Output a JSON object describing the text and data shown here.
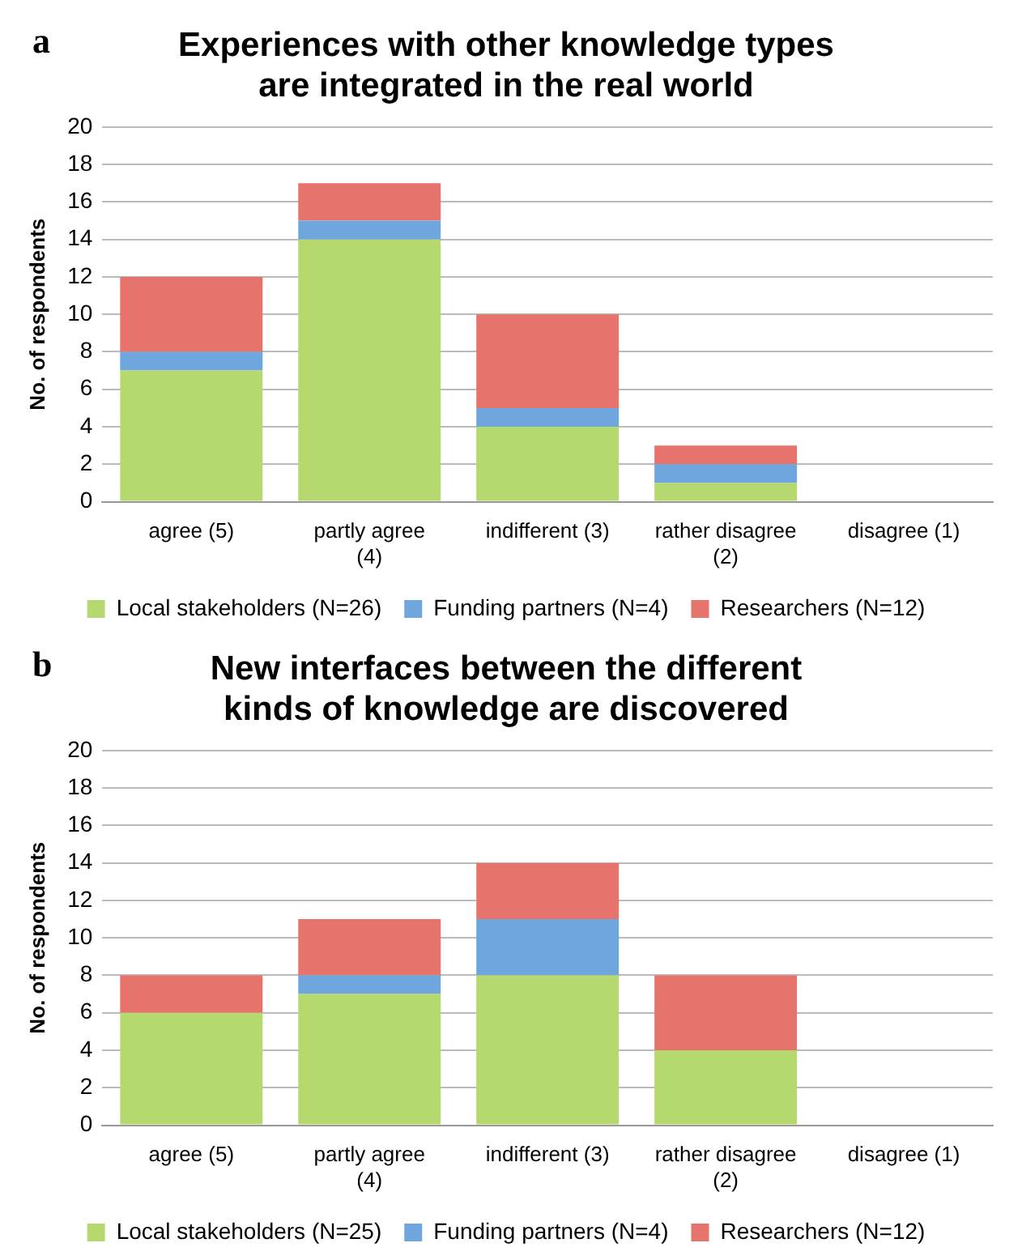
{
  "chart_data": [
    {
      "type": "bar",
      "title": "Experiences with other knowledge types are integrated in the real world",
      "ylabel": "No. of respondents",
      "annotations": [
        "a"
      ],
      "categories": [
        "agree (5)",
        "partly agree (4)",
        "indifferent (3)",
        "rather disagree (2)",
        "disagree (1)"
      ],
      "stacked": true,
      "series": [
        {
          "name": "Local stakeholders (N=26)",
          "color": "#b5d96e",
          "values": [
            7,
            14,
            4,
            1,
            0
          ]
        },
        {
          "name": "Funding partners (N=4)",
          "color": "#6fa6de",
          "values": [
            1,
            1,
            1,
            1,
            0
          ]
        },
        {
          "name": "Researchers (N=12)",
          "color": "#e6736c",
          "values": [
            4,
            2,
            5,
            1,
            0
          ]
        }
      ],
      "ylim": [
        0,
        20
      ],
      "yticks": [
        0,
        2,
        4,
        6,
        8,
        10,
        12,
        14,
        16,
        18,
        20
      ],
      "grid": "y",
      "legend": "bottom"
    },
    {
      "type": "bar",
      "title": "New interfaces between the different kinds of knowledge are discovered",
      "ylabel": "No. of respondents",
      "annotations": [
        "b"
      ],
      "categories": [
        "agree (5)",
        "partly agree (4)",
        "indifferent (3)",
        "rather disagree (2)",
        "disagree (1)"
      ],
      "stacked": true,
      "series": [
        {
          "name": "Local stakeholders (N=25)",
          "color": "#b5d96e",
          "values": [
            6,
            7,
            8,
            4,
            0
          ]
        },
        {
          "name": "Funding partners (N=4)",
          "color": "#6fa6de",
          "values": [
            0,
            1,
            3,
            0,
            0
          ]
        },
        {
          "name": "Researchers (N=12)",
          "color": "#e6736c",
          "values": [
            2,
            3,
            3,
            4,
            0
          ]
        }
      ],
      "ylim": [
        0,
        20
      ],
      "yticks": [
        0,
        2,
        4,
        6,
        8,
        10,
        12,
        14,
        16,
        18,
        20
      ],
      "grid": "y",
      "legend": "bottom"
    }
  ]
}
